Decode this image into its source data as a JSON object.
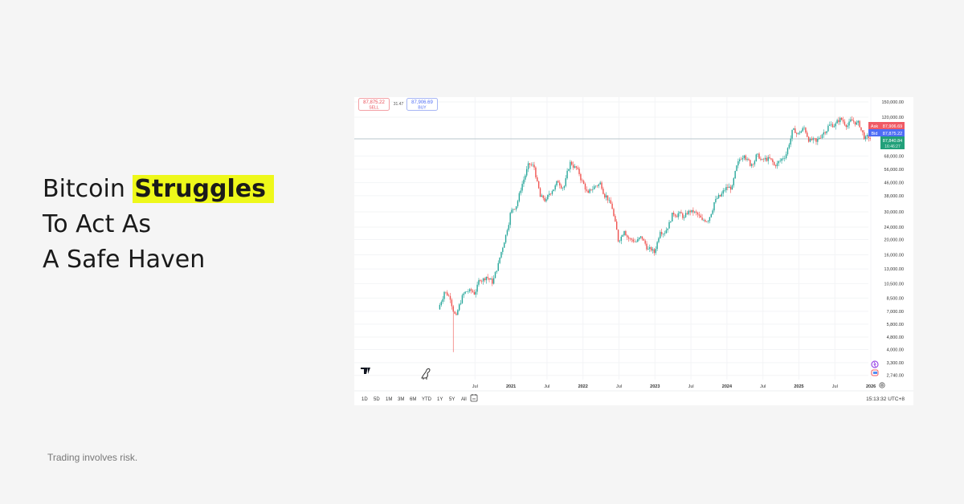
{
  "headline": {
    "line1_pre": "Bitcoin ",
    "line1_highlight": "Struggles",
    "line2": "To Act As",
    "line3": "A Safe Haven"
  },
  "footer": "Trading involves risk.",
  "colors": {
    "highlight": "#eef81a",
    "up": "#26a69a",
    "down": "#ef5350",
    "ask": "#f05a64",
    "bid": "#4f6df5",
    "last": "#22a07a"
  },
  "trade_buttons": {
    "sell_price": "87,875.22",
    "sell_label": "SELL",
    "spread": "31.47",
    "buy_price": "87,906.69",
    "buy_label": "BUY"
  },
  "price_tags": {
    "ask_label": "Ask",
    "ask": "87,906.69",
    "bid_label": "Bid",
    "bid": "87,875.22",
    "last": "87,840.84",
    "countdown": "16:46:27"
  },
  "toolbar": {
    "ranges": [
      "1D",
      "5D",
      "1M",
      "3M",
      "6M",
      "YTD",
      "1Y",
      "5Y",
      "All"
    ],
    "time": "15:13:32 UTC+8"
  },
  "icons": [
    "tradingview-logo-icon",
    "dinosaur-icon",
    "calendar-range-icon",
    "settings-icon",
    "alert-icon",
    "calendar-event-icon"
  ],
  "chart_data": {
    "type": "candlestick",
    "y_scale": "log",
    "ylim": [
      2740,
      150000
    ],
    "y_ticks": [
      150000,
      120000,
      68000,
      56000,
      46000,
      38000,
      30000,
      24000,
      20000,
      16000,
      13000,
      10500,
      8500,
      7000,
      5800,
      4800,
      4000,
      3300,
      2740
    ],
    "y_tick_labels": [
      "150,000.00",
      "120,000.00",
      "68,000.00",
      "56,000.00",
      "46,000.00",
      "38,000.00",
      "30,000.00",
      "24,000.00",
      "20,000.00",
      "16,000.00",
      "13,000.00",
      "10,500.00",
      "8,500.00",
      "7,000.00",
      "5,800.00",
      "4,800.00",
      "4,000.00",
      "3,300.00",
      "2,740.00"
    ],
    "x_ticks": [
      {
        "label": "Jul",
        "date": "2020-07"
      },
      {
        "label": "2021",
        "date": "2021-01"
      },
      {
        "label": "Jul",
        "date": "2021-07"
      },
      {
        "label": "2022",
        "date": "2022-01"
      },
      {
        "label": "Jul",
        "date": "2022-07"
      },
      {
        "label": "2023",
        "date": "2023-01"
      },
      {
        "label": "Jul",
        "date": "2023-07"
      },
      {
        "label": "2024",
        "date": "2024-01"
      },
      {
        "label": "Jul",
        "date": "2024-07"
      },
      {
        "label": "2025",
        "date": "2025-01"
      },
      {
        "label": "Jul",
        "date": "2025-07"
      },
      {
        "label": "2026",
        "date": "2026-01"
      }
    ],
    "start": "2020-01",
    "monthly_close": [
      9350,
      8600,
      6400,
      8600,
      9450,
      9140,
      11350,
      11650,
      10780,
      13800,
      19700,
      29000,
      33100,
      45200,
      58800,
      57700,
      37300,
      35000,
      41500,
      47100,
      43800,
      61300,
      57000,
      46300,
      38500,
      43200,
      45500,
      37700,
      31800,
      19900,
      23300,
      20000,
      19400,
      20500,
      17200,
      16550,
      23100,
      23150,
      28500,
      29250,
      27200,
      30500,
      29200,
      26000,
      27000,
      34500,
      37700,
      42300,
      42600,
      61200,
      71300,
      60600,
      67500,
      62700,
      64600,
      59000,
      63300,
      70300,
      96400,
      93400,
      102400,
      84300,
      82500,
      94200,
      104600,
      107100,
      115700,
      108200,
      114000,
      109500,
      90400,
      87800
    ],
    "first_open": 7200,
    "low_2020_03": 3850,
    "current_price": 87840.84
  }
}
